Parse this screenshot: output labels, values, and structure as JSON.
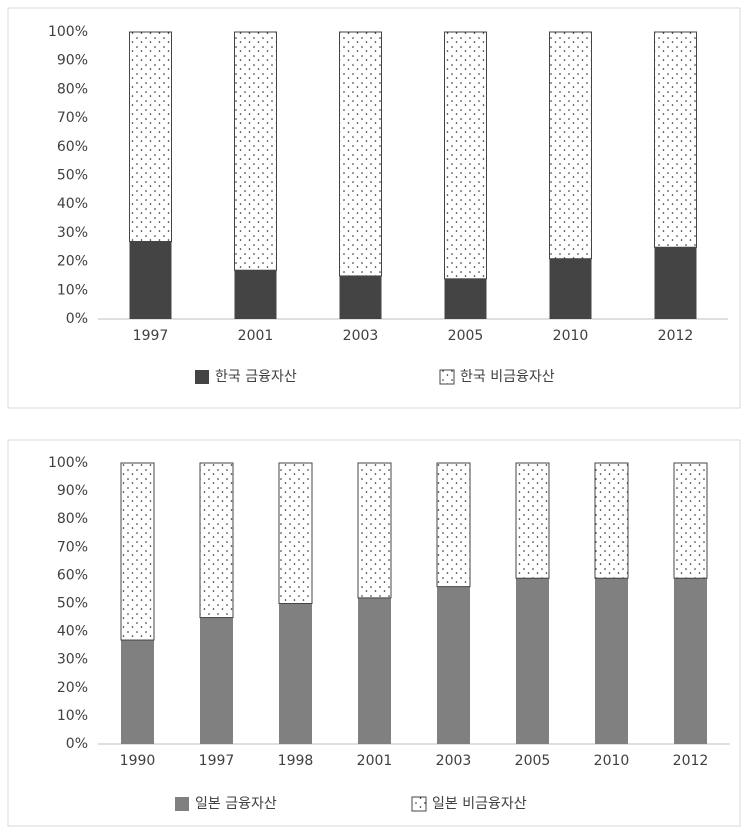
{
  "chart_data": [
    {
      "type": "stacked_bar",
      "categories": [
        "1997",
        "2001",
        "2003",
        "2005",
        "2010",
        "2012"
      ],
      "series": [
        {
          "name": "한국 금융자산",
          "color": "#444444",
          "values": [
            27,
            17,
            15,
            14,
            21,
            25
          ]
        },
        {
          "name": "한국 비금융자산",
          "color": "#ffffff",
          "pattern": "dots",
          "values": [
            73,
            83,
            85,
            86,
            79,
            75
          ]
        }
      ],
      "ylim": [
        0,
        100
      ],
      "yticks": [
        {
          "value": 0,
          "label": "0%"
        },
        {
          "value": 10,
          "label": "10%"
        },
        {
          "value": 20,
          "label": "20%"
        },
        {
          "value": 30,
          "label": "30%"
        },
        {
          "value": 40,
          "label": "40%"
        },
        {
          "value": 50,
          "label": "50%"
        },
        {
          "value": 60,
          "label": "60%"
        },
        {
          "value": 70,
          "label": "70%"
        },
        {
          "value": 80,
          "label": "80%"
        },
        {
          "value": 90,
          "label": "90%"
        },
        {
          "value": 100,
          "label": "100%"
        }
      ],
      "legend": "bottom"
    },
    {
      "type": "stacked_bar",
      "categories": [
        "1990",
        "1997",
        "1998",
        "2001",
        "2003",
        "2005",
        "2010",
        "2012"
      ],
      "series": [
        {
          "name": "일본 금융자산",
          "color": "#808080",
          "values": [
            37,
            45,
            50,
            52,
            56,
            59,
            59,
            59
          ]
        },
        {
          "name": "일본 비금융자산",
          "color": "#ffffff",
          "pattern": "dots",
          "values": [
            63,
            55,
            50,
            48,
            44,
            41,
            41,
            41
          ]
        }
      ],
      "ylim": [
        0,
        100
      ],
      "yticks": [
        {
          "value": 0,
          "label": "0%"
        },
        {
          "value": 10,
          "label": "10%"
        },
        {
          "value": 20,
          "label": "20%"
        },
        {
          "value": 30,
          "label": "30%"
        },
        {
          "value": 40,
          "label": "40%"
        },
        {
          "value": 50,
          "label": "50%"
        },
        {
          "value": 60,
          "label": "60%"
        },
        {
          "value": 70,
          "label": "70%"
        },
        {
          "value": 80,
          "label": "80%"
        },
        {
          "value": 90,
          "label": "90%"
        },
        {
          "value": 100,
          "label": "100%"
        }
      ],
      "legend": "bottom"
    }
  ]
}
